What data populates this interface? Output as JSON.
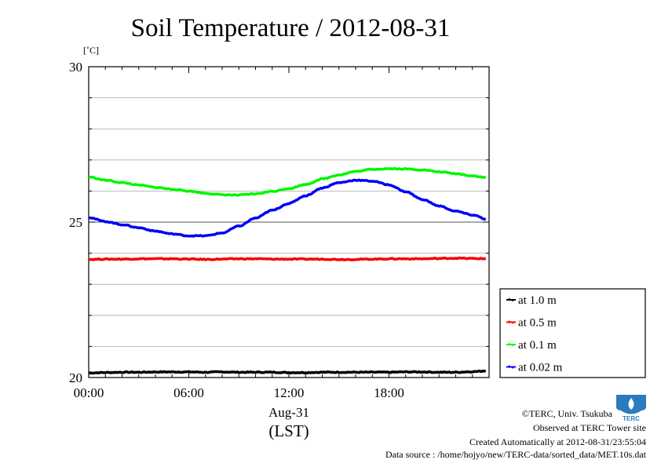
{
  "chart_data": {
    "type": "line",
    "title": "Soil Temperature / 2012-08-31",
    "ylabel": "[˚C]",
    "xlabel_date": "Aug-31",
    "xlabel_tz": "(LST)",
    "xlim": [
      0,
      24
    ],
    "ylim": [
      20,
      30
    ],
    "y_ticks": [
      20,
      25,
      30
    ],
    "y_tick_labels": [
      "20",
      "25",
      "30"
    ],
    "x_ticks": [
      0,
      6,
      12,
      18
    ],
    "x_tick_labels": [
      "00:00",
      "06:00",
      "12:00",
      "18:00"
    ],
    "grid": true,
    "legend_position": "bottom-right, outside plot area",
    "x": [
      0,
      1,
      2,
      3,
      4,
      5,
      6,
      7,
      8,
      9,
      10,
      11,
      12,
      13,
      14,
      15,
      16,
      17,
      18,
      19,
      20,
      21,
      22,
      23,
      24
    ],
    "series": [
      {
        "name": "at 1.0 m",
        "color": "#000000",
        "values": [
          20.15,
          20.16,
          20.17,
          20.17,
          20.18,
          20.18,
          20.18,
          20.17,
          20.18,
          20.17,
          20.17,
          20.17,
          20.16,
          20.16,
          20.17,
          20.17,
          20.17,
          20.17,
          20.17,
          20.18,
          20.18,
          20.17,
          20.17,
          20.19,
          20.22
        ]
      },
      {
        "name": "at 0.5 m",
        "color": "#ff0000",
        "values": [
          23.8,
          23.81,
          23.81,
          23.82,
          23.82,
          23.82,
          23.81,
          23.8,
          23.81,
          23.82,
          23.82,
          23.81,
          23.81,
          23.81,
          23.81,
          23.8,
          23.8,
          23.81,
          23.82,
          23.82,
          23.82,
          23.83,
          23.84,
          23.83,
          23.82
        ]
      },
      {
        "name": "at 0.1 m",
        "color": "#00ff00",
        "values": [
          26.45,
          26.35,
          26.27,
          26.19,
          26.12,
          26.06,
          26.0,
          25.93,
          25.88,
          25.87,
          25.91,
          25.99,
          26.08,
          26.21,
          26.39,
          26.52,
          26.63,
          26.7,
          26.72,
          26.71,
          26.68,
          26.62,
          26.56,
          26.49,
          26.42
        ]
      },
      {
        "name": "at 0.02 m",
        "color": "#0000ff",
        "values": [
          25.15,
          25.02,
          24.92,
          24.82,
          24.71,
          24.62,
          24.56,
          24.56,
          24.65,
          24.87,
          25.13,
          25.38,
          25.6,
          25.85,
          26.1,
          26.27,
          26.35,
          26.32,
          26.2,
          25.98,
          25.73,
          25.52,
          25.35,
          25.23,
          25.07
        ]
      }
    ]
  },
  "footer": {
    "copyright": "©TERC, Univ. Tsukuba",
    "observed": "Observed at TERC Tower site",
    "created": "Created Automatically at 2012-08-31/23:55:04",
    "source": "Data source : /home/hojyo/new/TERC-data/sorted_data/MET.10s.dat",
    "logo_text": "TERC"
  }
}
